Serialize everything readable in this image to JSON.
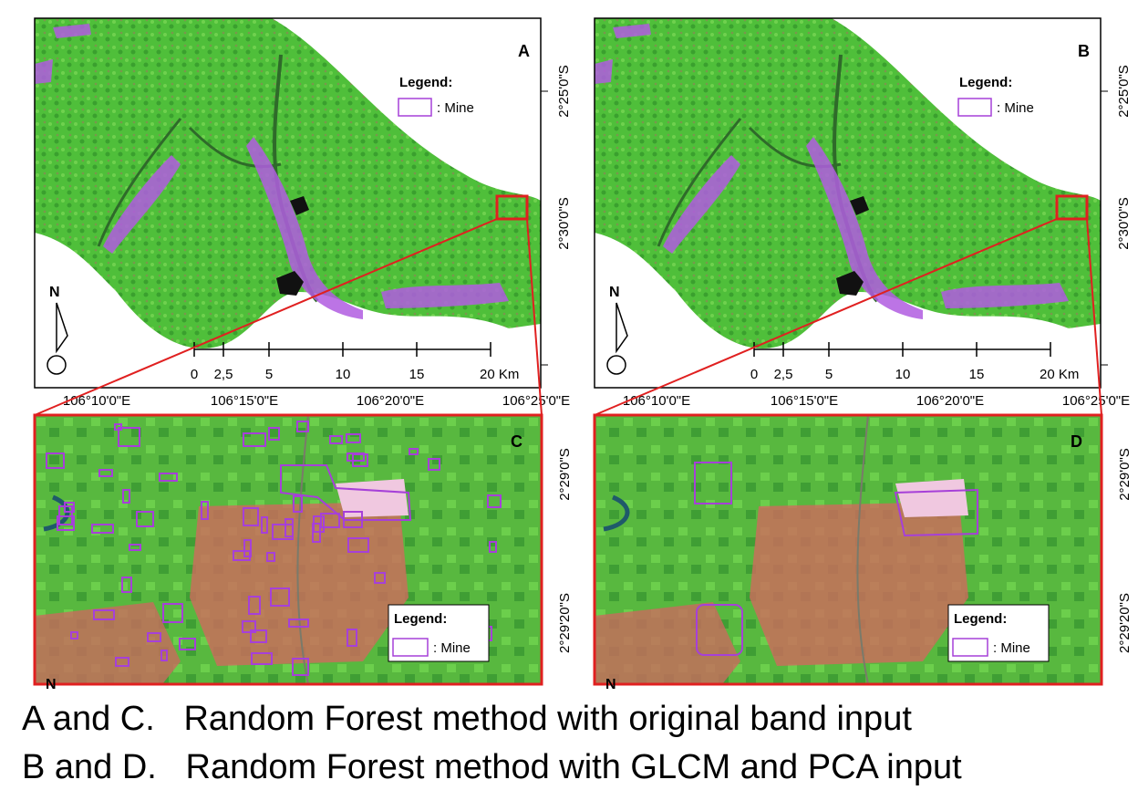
{
  "panels": [
    {
      "label": "A",
      "legend_title": "Legend:",
      "legend_item": ": Mine",
      "north": "N",
      "scale_labels": [
        "0",
        "2,5",
        "5",
        "10",
        "15",
        "20 Km"
      ],
      "lon_labels": [
        "106°10'0\"E",
        "106°15'0\"E",
        "106°20'0\"E",
        "106°25'0\"E"
      ],
      "lat_labels": [
        "2°25'0\"S",
        "2°30'0\"S"
      ]
    },
    {
      "label": "B",
      "legend_title": "Legend:",
      "legend_item": ": Mine",
      "north": "N",
      "scale_labels": [
        "0",
        "2,5",
        "5",
        "10",
        "15",
        "20 Km"
      ],
      "lon_labels": [
        "106°10'0\"E",
        "106°15'0\"E",
        "106°20'0\"E",
        "106°25'0\"E"
      ],
      "lat_labels": [
        "2°25'0\"S",
        "2°30'0\"S"
      ]
    }
  ],
  "zooms": [
    {
      "label": "C",
      "legend_title": "Legend:",
      "legend_item": ": Mine",
      "north": "N",
      "lat_labels": [
        "2°29'0\"S",
        "2°29'20\"S"
      ]
    },
    {
      "label": "D",
      "legend_title": "Legend:",
      "legend_item": ": Mine",
      "north": "N",
      "lat_labels": [
        "2°29'0\"S",
        "2°29'20\"S"
      ]
    }
  ],
  "captions": [
    "A and C.   Random Forest method with original band input",
    "B and D.   Random Forest method with GLCM and PCA input"
  ]
}
